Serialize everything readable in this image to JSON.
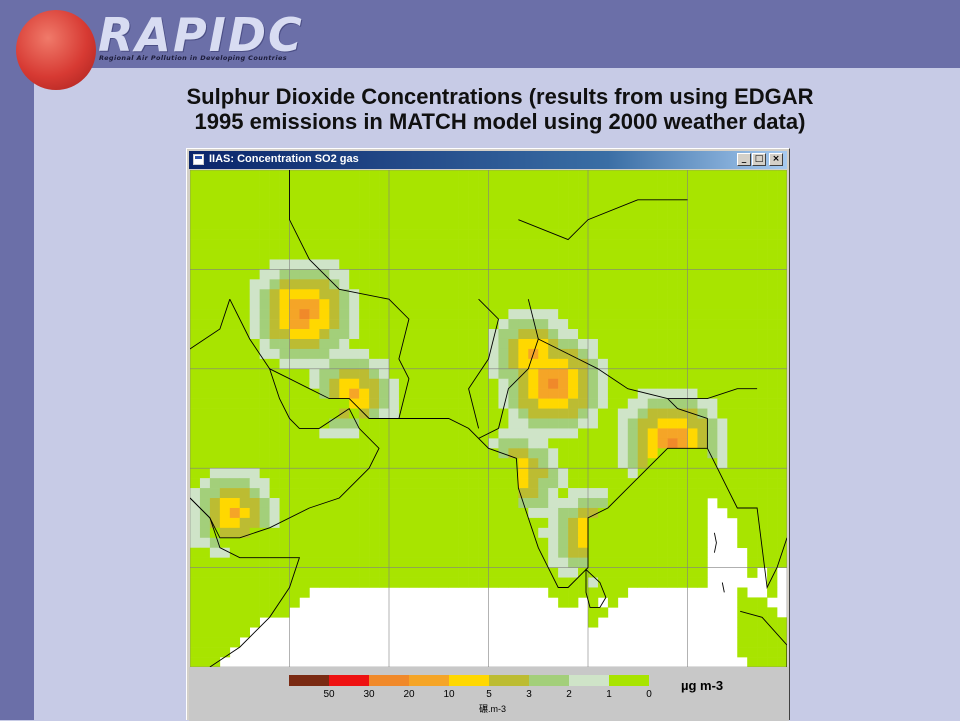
{
  "brand": {
    "name": "RAPIDC",
    "tagline": "Regional Air Pollution in Developing Countries"
  },
  "slide": {
    "title_line1": "Sulphur Dioxide Concentrations (results from using EDGAR",
    "title_line2": "1995 emissions in MATCH model using 2000 weather data)"
  },
  "window": {
    "title": "IIAS: Concentration SO2 gas",
    "minimize_label": "_",
    "maximize_label": "□",
    "close_label": "×"
  },
  "legend": {
    "unit": "µg m-3",
    "unit_small": "碾.m-3",
    "colors": [
      "#7a2a12",
      "#ee1111",
      "#f0892a",
      "#f5a527",
      "#ffd800",
      "#bcbc32",
      "#a3cf7a",
      "#cfe4c8",
      "#a8e400"
    ],
    "ticks": [
      "50",
      "30",
      "20",
      "10",
      "5",
      "3",
      "2",
      "1",
      "0"
    ]
  },
  "map": {
    "background_color": "#ffffff",
    "grid_color": "#808080",
    "boundary_color": "#000000",
    "palette": [
      "#ffffff",
      "#a8e400",
      "#cfe4c8",
      "#a3cf7a",
      "#bcbc32",
      "#ffd800",
      "#f5a527",
      "#f0892a",
      "#ee1111"
    ],
    "hotspots": [
      [
        76.5,
        28.5,
        8
      ],
      [
        88.4,
        22.6,
        8
      ],
      [
        51.4,
        35.7,
        8
      ],
      [
        74.3,
        31.5,
        7
      ],
      [
        56.2,
        27.3,
        7
      ],
      [
        44.2,
        15.4,
        7
      ],
      [
        72.9,
        19.1,
        7
      ],
      [
        80.2,
        13.1,
        7
      ]
    ]
  }
}
